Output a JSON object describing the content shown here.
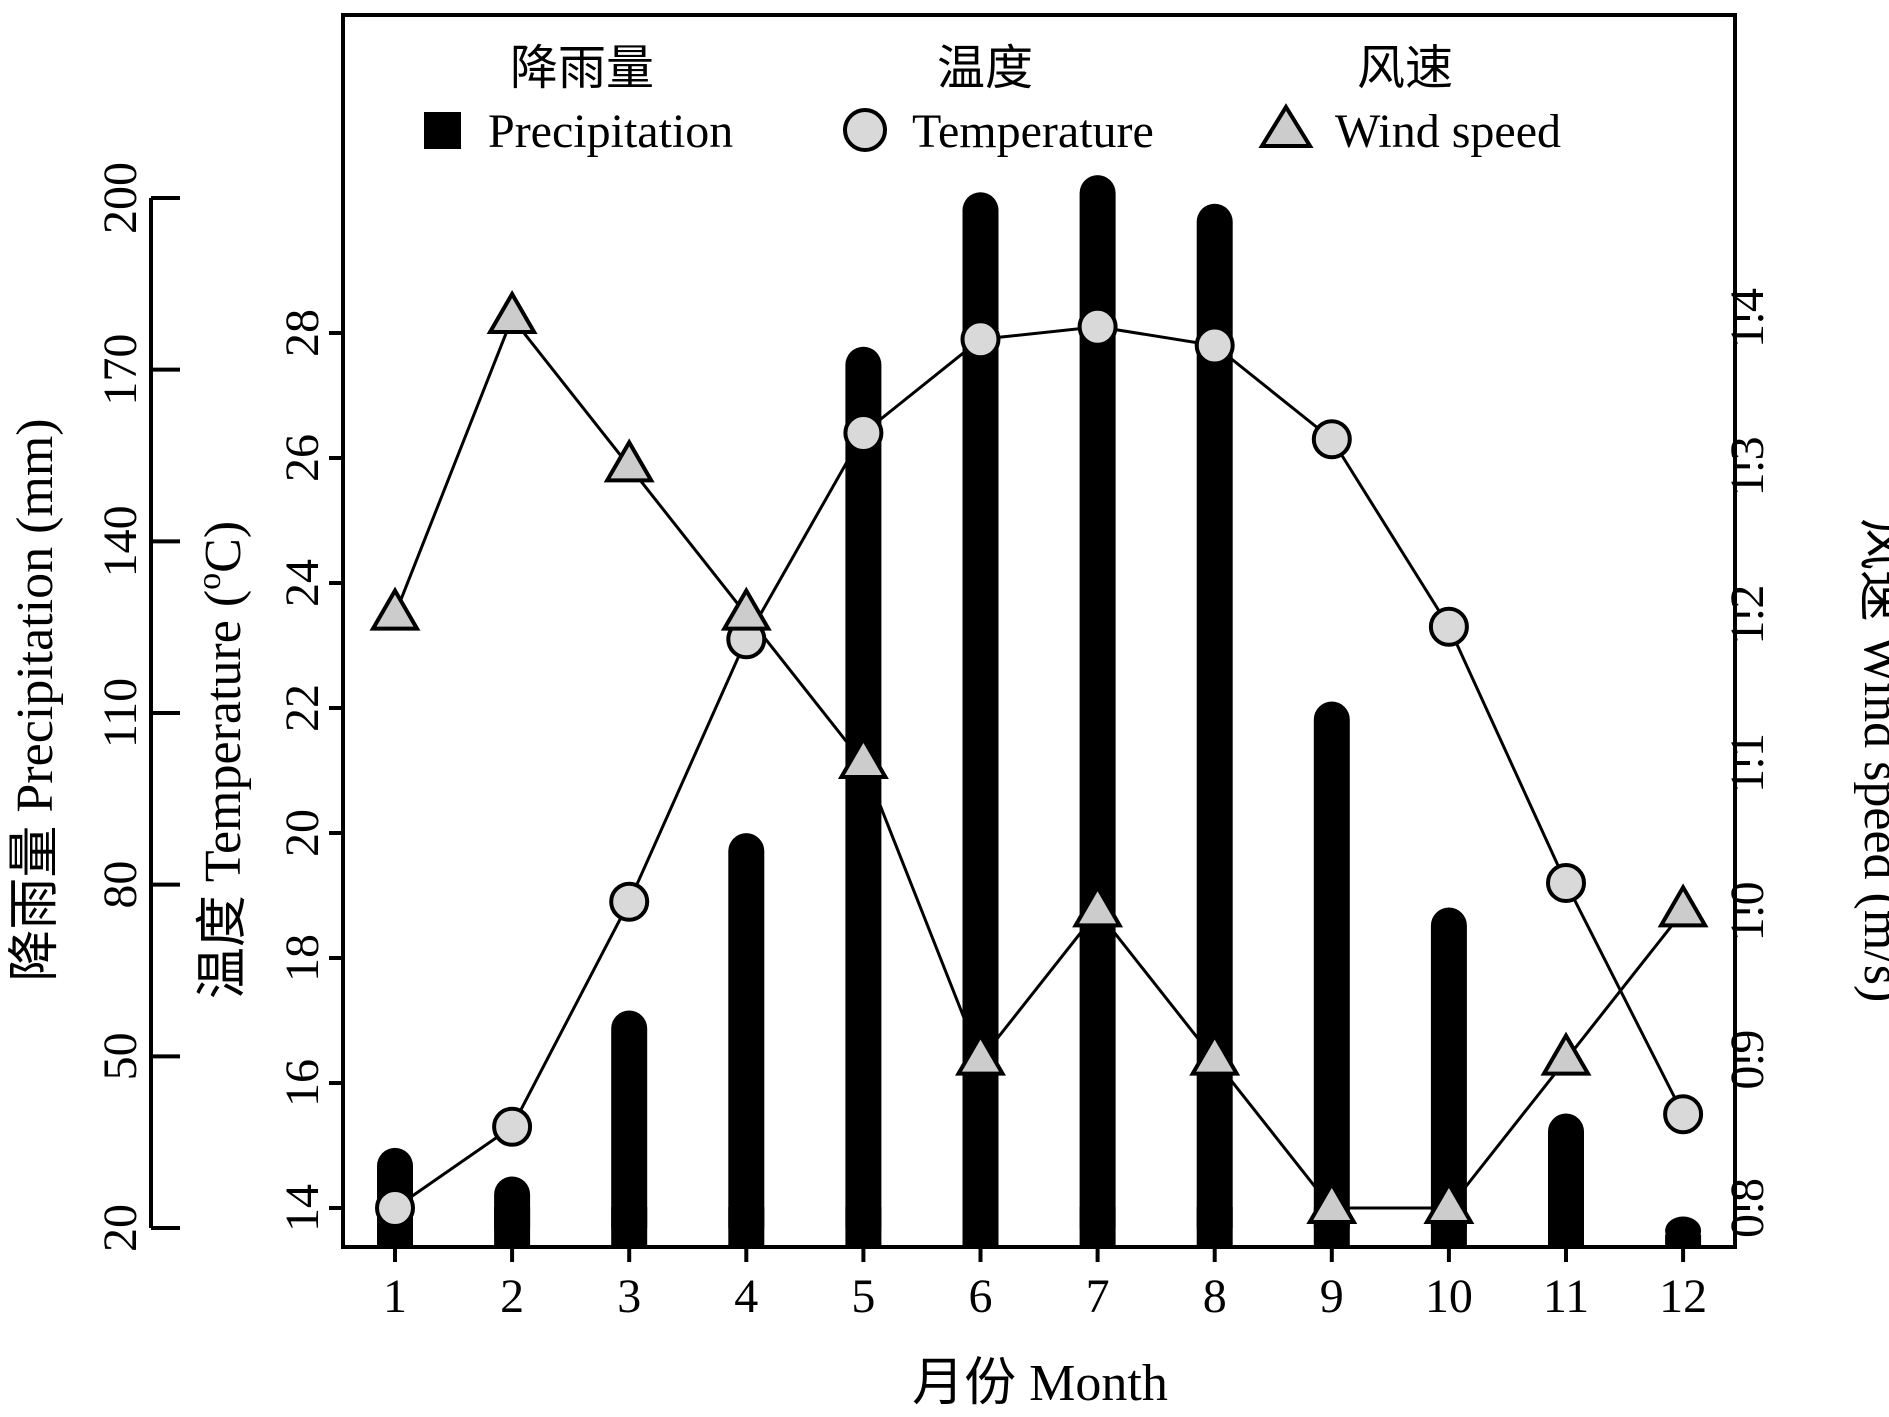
{
  "chart_data": {
    "type": "bar",
    "x": [
      1,
      2,
      3,
      4,
      5,
      6,
      7,
      8,
      9,
      10,
      11,
      12
    ],
    "xlabel": "月份 Month",
    "series": [
      {
        "name": "Precipitation",
        "name_zh": "降雨量",
        "type": "bar",
        "axis": "left-outer",
        "color": "#000000",
        "values": [
          34,
          29,
          58,
          89,
          174,
          201,
          204,
          199,
          112,
          76,
          40,
          22
        ]
      },
      {
        "name": "Temperature",
        "name_zh": "温度",
        "type": "line",
        "marker": "circle",
        "axis": "left-inner",
        "color": "#d9d9d9",
        "values": [
          14.0,
          15.3,
          18.9,
          23.1,
          26.4,
          27.9,
          28.1,
          27.8,
          26.3,
          23.3,
          19.2,
          15.5
        ]
      },
      {
        "name": "Wind speed",
        "name_zh": "风速",
        "type": "line",
        "marker": "triangle",
        "axis": "right",
        "color": "#cccccc",
        "values": [
          1.2,
          1.4,
          1.3,
          1.2,
          1.1,
          0.9,
          1.0,
          0.9,
          0.8,
          0.8,
          0.9,
          1.0
        ]
      }
    ],
    "axes": {
      "precipitation": {
        "label": "降雨量 Precipitation (mm)",
        "ticks": [
          20,
          50,
          80,
          110,
          140,
          170,
          200
        ],
        "range": [
          20,
          200
        ]
      },
      "temperature": {
        "label": "温度 Temperature (°C)",
        "label_main": "温度 Temperature (",
        "label_sup": "o",
        "label_end": "C)",
        "ticks": [
          14,
          16,
          18,
          20,
          22,
          24,
          26,
          28
        ],
        "range": [
          14,
          28
        ]
      },
      "wind": {
        "label": "风速 Wind speed (m/s)",
        "ticks": [
          "0.8",
          "0.9",
          "1.0",
          "1.1",
          "1.2",
          "1.3",
          "1.4"
        ],
        "range": [
          0.8,
          1.4
        ]
      }
    },
    "legend": {
      "position": "top",
      "items": [
        {
          "zh": "降雨量",
          "en": "Precipitation",
          "symbol": "square"
        },
        {
          "zh": "温度",
          "en": "Temperature",
          "symbol": "circle"
        },
        {
          "zh": "风速",
          "en": "Wind speed",
          "symbol": "triangle"
        }
      ]
    },
    "grid": false
  }
}
